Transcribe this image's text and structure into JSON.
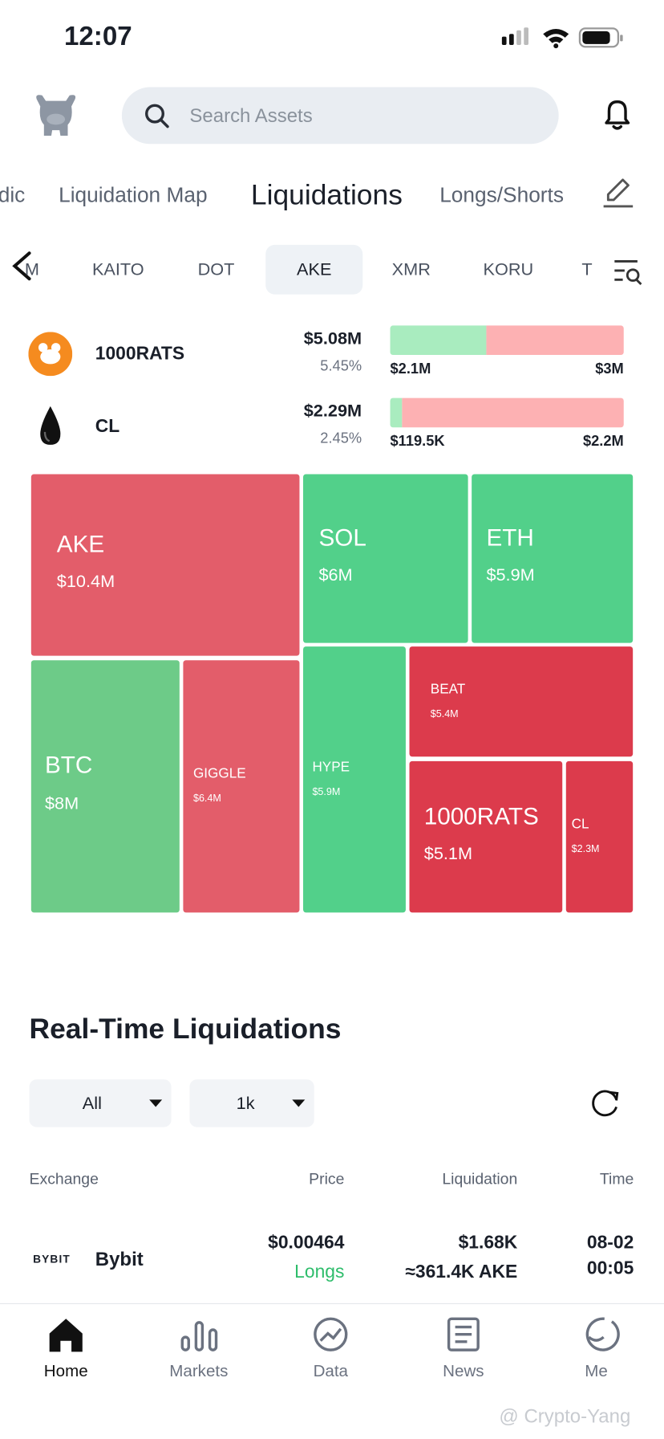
{
  "status_bar": {
    "time": "12:07"
  },
  "search": {
    "placeholder": "Search Assets"
  },
  "tabs": [
    "dic",
    "Liquidation Map",
    "Liquidations",
    "Longs/Shorts"
  ],
  "coins": [
    "M",
    "KAITO",
    "DOT",
    "AKE",
    "XMR",
    "KORU",
    "T"
  ],
  "summary": [
    {
      "name": "1000RATS",
      "total": "$5.08M",
      "share": "5.45%",
      "long": {
        "value": 2.1,
        "label": "$2.1M"
      },
      "short": {
        "value": 3,
        "label": "$3M"
      }
    },
    {
      "name": "CL",
      "total": "$2.29M",
      "share": "2.45%",
      "long": {
        "value": 0.1195,
        "label": "$119.5K"
      },
      "short": {
        "value": 2.2,
        "label": "$2.2M"
      }
    }
  ],
  "treemap": {
    "tiles": [
      {
        "name": "AKE",
        "value": "$10.4M",
        "color": "#e35d6a"
      },
      {
        "name": "SOL",
        "value": "$6M",
        "color": "#52d08a"
      },
      {
        "name": "ETH",
        "value": "$5.9M",
        "color": "#52d08a"
      },
      {
        "name": "BTC",
        "value": "$8M",
        "color": "#6dcb88"
      },
      {
        "name": "GIGGLE",
        "value": "$6.4M",
        "color": "#e35d6a"
      },
      {
        "name": "HYPE",
        "value": "$5.9M",
        "color": "#52d08a"
      },
      {
        "name": "BEAT",
        "value": "$5.4M",
        "color": "#dc3b4c"
      },
      {
        "name": "1000RATS",
        "value": "$5.1M",
        "color": "#dc3b4c"
      },
      {
        "name": "CL",
        "value": "$2.3M",
        "color": "#dc3b4c"
      }
    ]
  },
  "realtime": {
    "title": "Real-Time Liquidations",
    "filters": [
      "All",
      "1k"
    ],
    "columns": [
      "Exchange",
      "Price",
      "Liquidation",
      "Time"
    ],
    "rows": [
      {
        "logo": "BYBIT",
        "exchange": "Bybit",
        "price": "$0.00464",
        "side": "Longs",
        "amount": "$1.68K",
        "quantity": "≈361.4K AKE",
        "date": "08-02",
        "time": "00:05"
      }
    ]
  },
  "nav": [
    "Home",
    "Markets",
    "Data",
    "News",
    "Me"
  ],
  "watermark": "@ Crypto-Yang"
}
